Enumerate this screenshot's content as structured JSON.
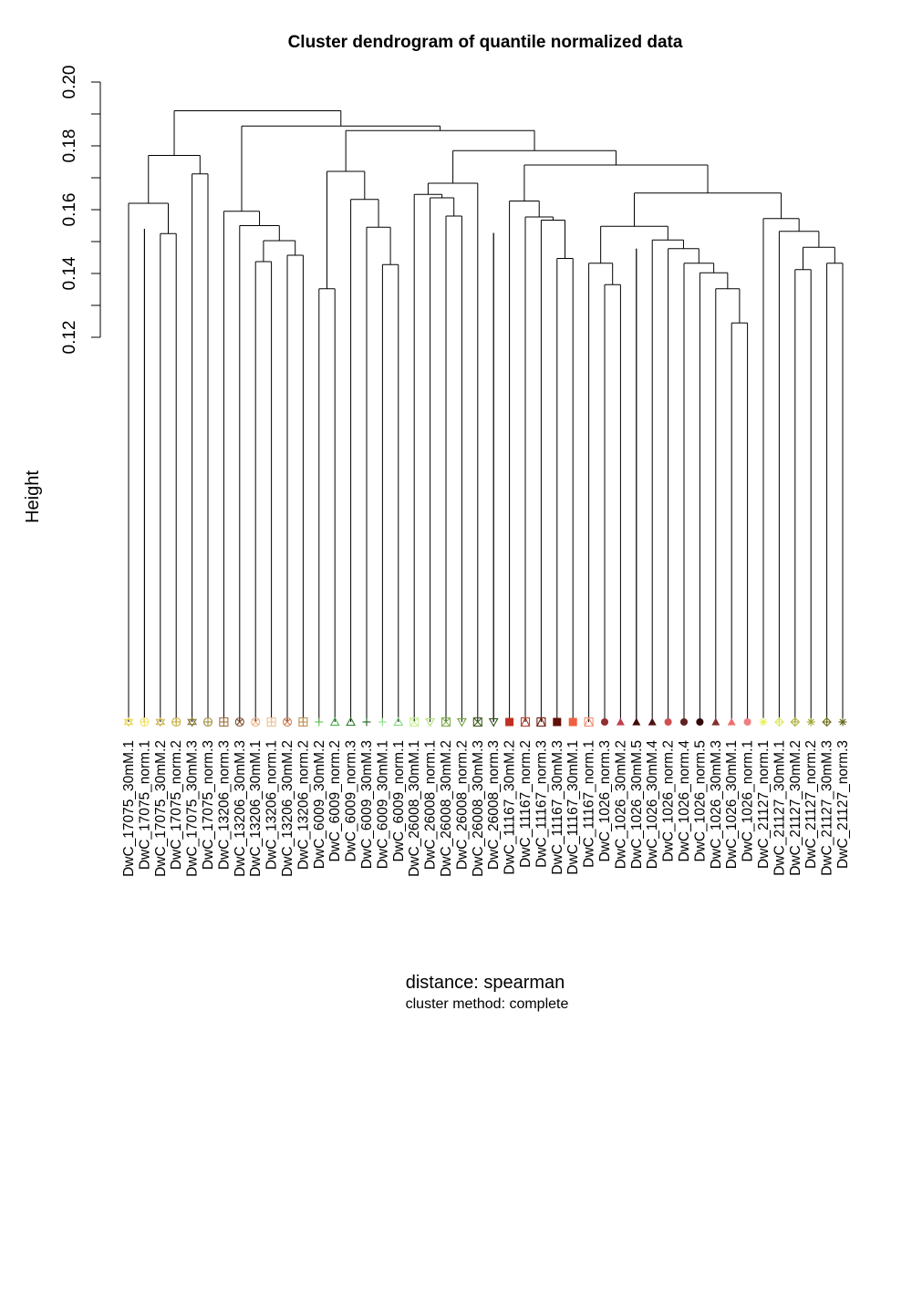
{
  "chart_data": {
    "type": "dendrogram",
    "title": "Cluster dendrogram of quantile normalized data",
    "ylabel": "Height",
    "xlabel": "distance: spearman",
    "sub": "cluster method: complete",
    "ylim": [
      0.12,
      0.2
    ],
    "yticks": [
      "0.12",
      "0.14",
      "0.16",
      "0.18",
      "0.20"
    ],
    "y_tick_values": [
      0.12,
      0.14,
      0.16,
      0.18,
      0.2
    ],
    "minor_tick_step": 0.01,
    "leaf_baseline_height": 0.0,
    "leaves": [
      {
        "label": "DwC_17075_30mM.1",
        "symbol": "star-of-david",
        "color": "#e8d85a"
      },
      {
        "label": "DwC_17075_norm.1",
        "symbol": "plus-circle",
        "color": "#f0e070"
      },
      {
        "label": "DwC_17075_30mM.2",
        "symbol": "star-of-david",
        "color": "#d0b860"
      },
      {
        "label": "DwC_17075_norm.2",
        "symbol": "plus-circle",
        "color": "#c8b040"
      },
      {
        "label": "DwC_17075_30mM.3",
        "symbol": "star-of-david",
        "color": "#8a7a3a"
      },
      {
        "label": "DwC_17075_norm.3",
        "symbol": "plus-circle",
        "color": "#a09040"
      },
      {
        "label": "DwC_13206_norm.3",
        "symbol": "square-plus",
        "color": "#a07040"
      },
      {
        "label": "DwC_13206_30mM.3",
        "symbol": "circle-x",
        "color": "#805030"
      },
      {
        "label": "DwC_13206_30mM.1",
        "symbol": "circle-x",
        "color": "#f0b080"
      },
      {
        "label": "DwC_13206_norm.1",
        "symbol": "square-plus",
        "color": "#f0c090"
      },
      {
        "label": "DwC_13206_30mM.2",
        "symbol": "circle-x",
        "color": "#d08050"
      },
      {
        "label": "DwC_13206_norm.2",
        "symbol": "square-plus",
        "color": "#c09050"
      },
      {
        "label": "DwC_6009_30mM.2",
        "symbol": "plus",
        "color": "#60c060"
      },
      {
        "label": "DwC_6009_norm.2",
        "symbol": "triangle-open",
        "color": "#50b050"
      },
      {
        "label": "DwC_6009_norm.3",
        "symbol": "triangle-open",
        "color": "#308030"
      },
      {
        "label": "DwC_6009_30mM.3",
        "symbol": "plus",
        "color": "#206020"
      },
      {
        "label": "DwC_6009_30mM.1",
        "symbol": "plus",
        "color": "#90e090"
      },
      {
        "label": "DwC_6009_norm.1",
        "symbol": "triangle-open",
        "color": "#80d880"
      },
      {
        "label": "DwC_26008_30mM.1",
        "symbol": "square-x",
        "color": "#c8f090"
      },
      {
        "label": "DwC_26008_norm.1",
        "symbol": "triangle-down-open",
        "color": "#b0e070"
      },
      {
        "label": "DwC_26008_30mM.2",
        "symbol": "square-x",
        "color": "#80b050"
      },
      {
        "label": "DwC_26008_norm.2",
        "symbol": "triangle-down-open",
        "color": "#70a040"
      },
      {
        "label": "DwC_26008_30mM.3",
        "symbol": "square-x",
        "color": "#406020"
      },
      {
        "label": "DwC_26008_norm.3",
        "symbol": "triangle-down-open",
        "color": "#305018"
      },
      {
        "label": "DwC_11167_30mM.2",
        "symbol": "square-filled",
        "color": "#c03020"
      },
      {
        "label": "DwC_11167_norm.2",
        "symbol": "square-triangle",
        "color": "#b04030"
      },
      {
        "label": "DwC_11167_norm.3",
        "symbol": "square-triangle",
        "color": "#702010"
      },
      {
        "label": "DwC_11167_30mM.3",
        "symbol": "square-filled",
        "color": "#601008"
      },
      {
        "label": "DwC_11167_30mM.1",
        "symbol": "square-filled",
        "color": "#f06040"
      },
      {
        "label": "DwC_11167_norm.1",
        "symbol": "square-triangle",
        "color": "#f09070"
      },
      {
        "label": "DwC_1026_norm.3",
        "symbol": "circle-filled",
        "color": "#903030"
      },
      {
        "label": "DwC_1026_30mM.2",
        "symbol": "triangle-filled",
        "color": "#c04050"
      },
      {
        "label": "DwC_1026_30mM.5",
        "symbol": "triangle-filled",
        "color": "#400808"
      },
      {
        "label": "DwC_1026_30mM.4",
        "symbol": "triangle-filled",
        "color": "#501010"
      },
      {
        "label": "DwC_1026_norm.2",
        "symbol": "circle-filled",
        "color": "#d05050"
      },
      {
        "label": "DwC_1026_norm.4",
        "symbol": "circle-filled",
        "color": "#602020"
      },
      {
        "label": "DwC_1026_norm.5",
        "symbol": "circle-filled",
        "color": "#300808"
      },
      {
        "label": "DwC_1026_30mM.3",
        "symbol": "triangle-filled",
        "color": "#803030"
      },
      {
        "label": "DwC_1026_30mM.1",
        "symbol": "triangle-filled",
        "color": "#f07070"
      },
      {
        "label": "DwC_1026_norm.1",
        "symbol": "circle-filled",
        "color": "#f08080"
      },
      {
        "label": "DwC_21127_norm.1",
        "symbol": "asterisk",
        "color": "#e8f050"
      },
      {
        "label": "DwC_21127_30mM.1",
        "symbol": "diamond-plus",
        "color": "#e0e860"
      },
      {
        "label": "DwC_21127_30mM.2",
        "symbol": "diamond-plus",
        "color": "#b0b040"
      },
      {
        "label": "DwC_21127_norm.2",
        "symbol": "asterisk",
        "color": "#a0a830"
      },
      {
        "label": "DwC_21127_30mM.3",
        "symbol": "diamond-plus",
        "color": "#707020"
      },
      {
        "label": "DwC_21127_norm.3",
        "symbol": "asterisk",
        "color": "#606018"
      }
    ],
    "merges": [
      {
        "left": "L1",
        "right": "L2",
        "height": 0.154
      },
      {
        "left": "L0",
        "right": "M0",
        "height": 0.1602
      },
      {
        "left": "L4",
        "right": "L5",
        "height": 0.169
      },
      {
        "left": "M1",
        "right": "M2",
        "height": 0.1748
      },
      {
        "left": "L7",
        "right": "L8",
        "height": 0.1457
      },
      {
        "left": "L10",
        "right": "L11",
        "height": 0.1466
      },
      {
        "left": "M4",
        "right": "M5",
        "height": 0.1503
      },
      {
        "left": "L9",
        "right": "M6",
        "height": 0.1537
      },
      {
        "left": "L6",
        "right": "M7",
        "height": 0.1579
      },
      {
        "left": "L11b",
        "right": "L11c",
        "height": 0.0
      },
      {
        "left": "L12",
        "right": "L13",
        "height": 0.1352
      },
      {
        "left": "L16",
        "right": "L17",
        "height": 0.1423
      },
      {
        "left": "L15",
        "right": "M11",
        "height": 0.1545
      },
      {
        "left": "L14",
        "right": "M12",
        "height": 0.1632
      },
      {
        "left": "M10",
        "right": "M13",
        "height": 0.172
      }
    ]
  }
}
